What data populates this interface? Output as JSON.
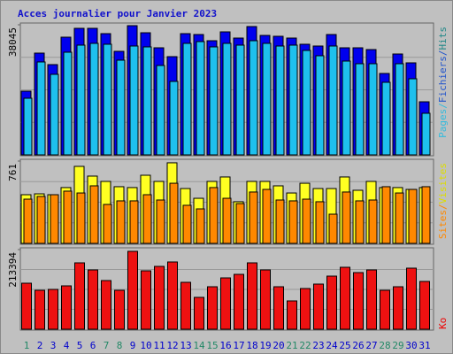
{
  "title": "Acces journalier pour Janvier 2023",
  "chart_data": [
    {
      "type": "bar",
      "ylim": [
        0,
        38045
      ],
      "yticks": [
        38045
      ],
      "label_parts": [
        {
          "text": "Pages",
          "color": "#33bbdd"
        },
        {
          "text": "/",
          "color": "#33bbdd"
        },
        {
          "text": "Fichiers",
          "color": "#2255cc"
        },
        {
          "text": "/",
          "color": "#2255cc"
        },
        {
          "text": "Hits",
          "color": "#228888"
        }
      ],
      "series": [
        {
          "name": "Fichiers",
          "color": "#0000ee",
          "values": [
            18634,
            29762,
            26398,
            34422,
            37010,
            37010,
            35457,
            30281,
            37787,
            35716,
            31316,
            28728,
            35457,
            35198,
            33386,
            35975,
            34163,
            37528,
            34939,
            34680,
            34163,
            32351,
            31834,
            35198,
            31316,
            31316,
            30798,
            23810,
            29504,
            26916,
            15529
          ]
        },
        {
          "name": "Pages",
          "color": "#1ec0ee",
          "values": [
            16564,
            27175,
            23552,
            30022,
            32093,
            32610,
            32351,
            27693,
            31834,
            31575,
            26140,
            21481,
            32610,
            33128,
            31575,
            32610,
            32093,
            33386,
            32610,
            31834,
            32093,
            30540,
            28987,
            31834,
            27434,
            26658,
            26658,
            21222,
            26658,
            22258,
            12164
          ]
        }
      ]
    },
    {
      "type": "bar",
      "ylim": [
        0,
        761
      ],
      "yticks": [
        761
      ],
      "label_parts": [
        {
          "text": "Sites",
          "color": "#ff8800"
        },
        {
          "text": "/",
          "color": "#ff8800"
        },
        {
          "text": "Visites",
          "color": "#dddd00"
        }
      ],
      "series": [
        {
          "name": "Visites",
          "color": "#ffff22",
          "values": [
            450,
            458,
            450,
            516,
            712,
            622,
            573,
            524,
            516,
            630,
            573,
            745,
            507,
            417,
            573,
            614,
            385,
            573,
            573,
            532,
            466,
            556,
            507,
            507,
            614,
            491,
            573,
            516,
            516,
            499,
            516
          ]
        },
        {
          "name": "Sites",
          "color": "#ff8800",
          "values": [
            409,
            434,
            450,
            483,
            466,
            532,
            360,
            393,
            393,
            450,
            401,
            556,
            352,
            319,
            516,
            417,
            368,
            475,
            499,
            401,
            393,
            409,
            385,
            270,
            475,
            393,
            401,
            524,
            466,
            499,
            524
          ]
        }
      ]
    },
    {
      "type": "bar",
      "ylim": [
        0,
        213394
      ],
      "yticks": [
        213394
      ],
      "label_parts": [
        {
          "text": "Ko",
          "color": "#ee0000"
        }
      ],
      "categories": [
        "1",
        "2",
        "3",
        "4",
        "5",
        "6",
        "7",
        "8",
        "9",
        "10",
        "11",
        "12",
        "13",
        "14",
        "15",
        "16",
        "17",
        "18",
        "19",
        "20",
        "21",
        "22",
        "23",
        "24",
        "25",
        "26",
        "27",
        "28",
        "29",
        "30",
        "31"
      ],
      "category_colors": [
        "#228866",
        "#0000cc",
        "#0000cc",
        "#0000cc",
        "#0000cc",
        "#0000cc",
        "#228866",
        "#228866",
        "#0000cc",
        "#0000cc",
        "#0000cc",
        "#0000cc",
        "#0000cc",
        "#228866",
        "#228866",
        "#0000cc",
        "#0000cc",
        "#0000cc",
        "#0000cc",
        "#0000cc",
        "#228866",
        "#228866",
        "#0000cc",
        "#0000cc",
        "#0000cc",
        "#0000cc",
        "#0000cc",
        "#228866",
        "#228866",
        "#0000cc",
        "#0000cc"
      ],
      "series": [
        {
          "name": "Ko",
          "color": "#ee1111",
          "values": [
            123292,
            104324,
            106695,
            116179,
            177825,
            158857,
            130405,
            104324,
            208648,
            156486,
            168341,
            180196,
            125663,
            85356,
            113808,
            137518,
            147002,
            177825,
            158857,
            113808,
            75872,
            109066,
            120921,
            142260,
            165970,
            151744,
            158857,
            104324,
            113808,
            163599,
            128034
          ]
        }
      ]
    }
  ]
}
